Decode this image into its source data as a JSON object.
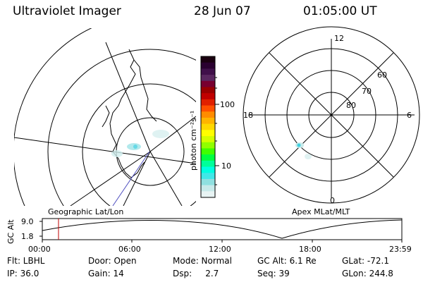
{
  "header": {
    "title": "Ultraviolet Imager",
    "date": "28 Jun 07",
    "time": "01:05:00 UT"
  },
  "colorbar": {
    "label": "photon cm⁻²s⁻¹",
    "ticks": [
      "100",
      "10"
    ],
    "colors": [
      "#1a0010",
      "#2a0030",
      "#40104a",
      "#5a2860",
      "#780030",
      "#9a0000",
      "#c00000",
      "#e02000",
      "#ff5000",
      "#ff8c00",
      "#ffb400",
      "#ffd800",
      "#ffff00",
      "#d4ff00",
      "#90ff00",
      "#40ff00",
      "#00ff40",
      "#00ff9a",
      "#00ffe0",
      "#40e8e8",
      "#90e0e0",
      "#c8eaea",
      "#e8f4f4"
    ]
  },
  "polar": {
    "mlt_labels": [
      "12",
      "18",
      "6",
      "0"
    ],
    "lat_labels": [
      "60",
      "70",
      "80"
    ]
  },
  "map_labels": {
    "left": "Geographic Lat/Lon",
    "right": "Apex MLat/MLT"
  },
  "timeline": {
    "ylabel": "GC Alt",
    "yticks": [
      "9.0",
      "1.8"
    ],
    "xticks": [
      "00:00",
      "06:00",
      "12:00",
      "18:00",
      "23:59"
    ]
  },
  "footer": {
    "row1": [
      "Flt: LBHL",
      "Door: Open",
      "Mode: Normal",
      "GC Alt: 6.1 Re",
      "GLat: -72.1"
    ],
    "row2": [
      "IP: 36.0",
      "Gain: 14",
      "Dsp:     2.7",
      "Seq: 39",
      "GLon: 244.8"
    ]
  }
}
